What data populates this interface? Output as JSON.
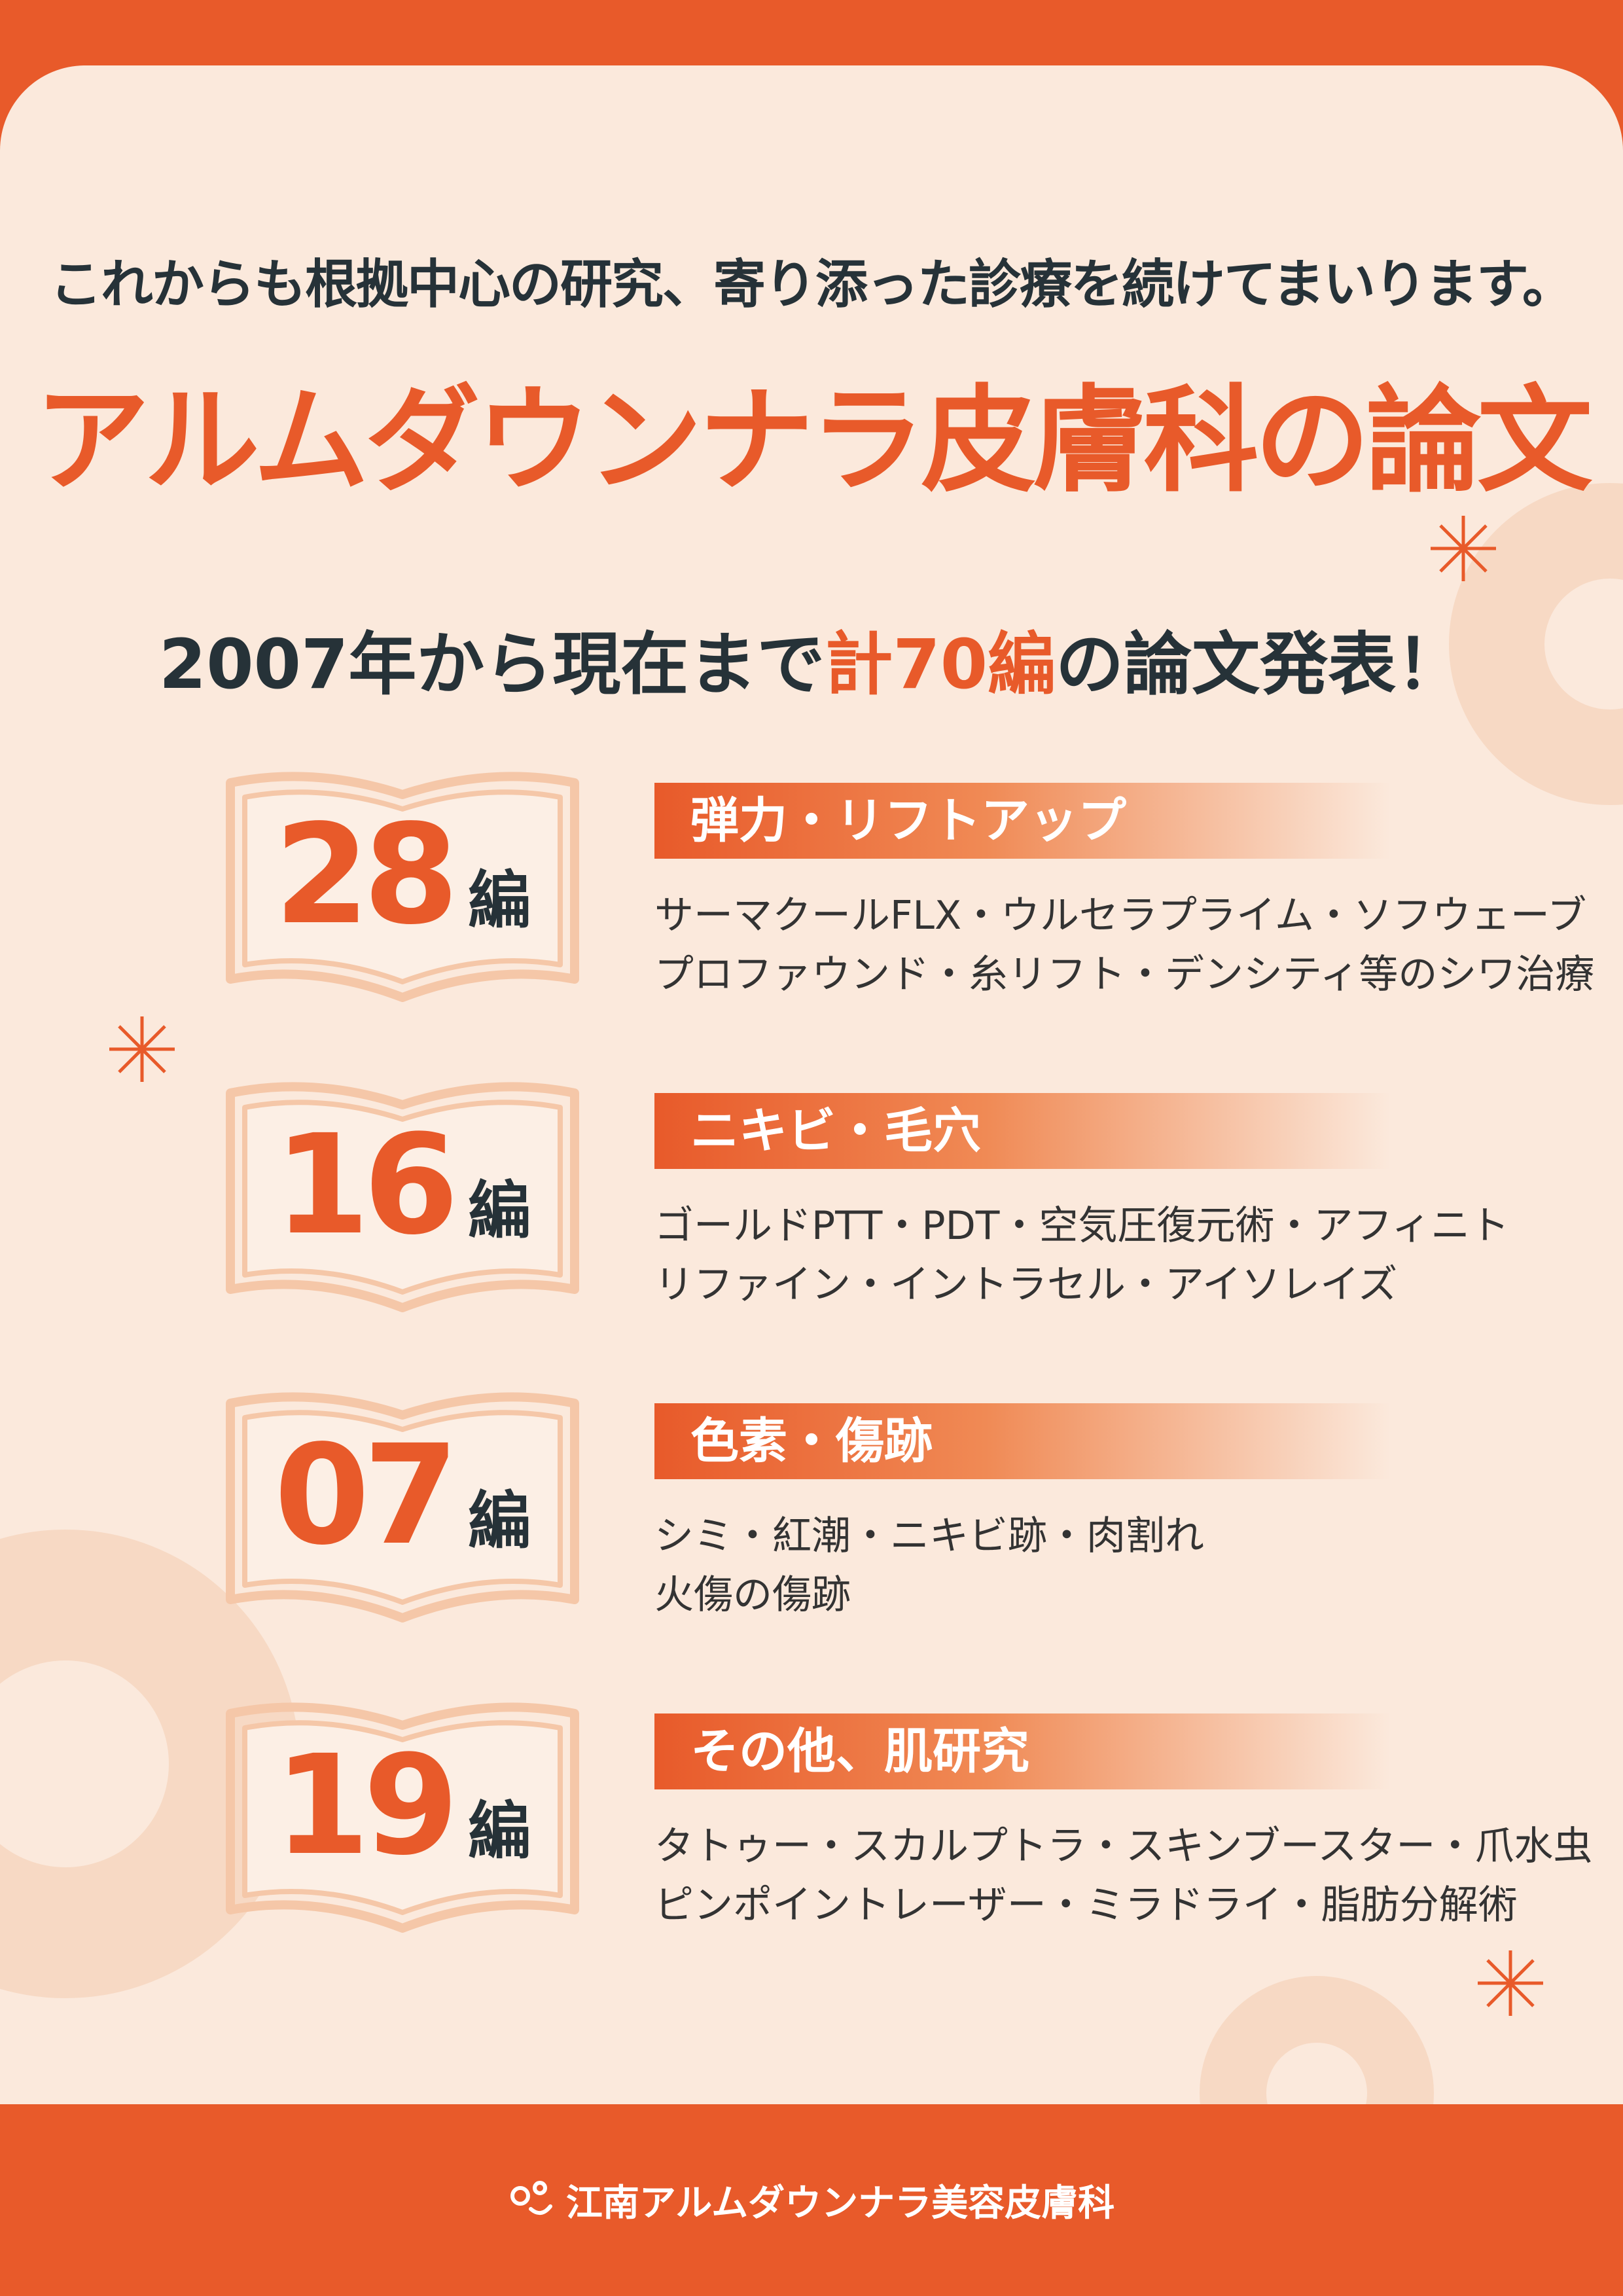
{
  "header": {
    "subtitle": "これからも根拠中心の研究、寄り添った診療を続けてまいります。",
    "title": "アルムダウンナラ皮膚科の論文"
  },
  "summary": {
    "before": "2007年から現在まで",
    "highlight": "計70編",
    "after": "の論文発表！"
  },
  "items": [
    {
      "count": "28",
      "unit": "編",
      "category": "弾力・リフトアップ",
      "lines": [
        "サーマクールFLX・ウルセラプライム・ソフウェーブ",
        "プロファウンド・糸リフト・デンシティ等のシワ治療"
      ]
    },
    {
      "count": "16",
      "unit": "編",
      "category": "ニキビ・毛穴",
      "lines": [
        "ゴールドPTT・PDT・空気圧復元術・アフィニト",
        "リファイン・イントラセル・アイソレイズ"
      ]
    },
    {
      "count": "07",
      "unit": "編",
      "category": "色素・傷跡",
      "lines": [
        "シミ・紅潮・ニキビ跡・肉割れ",
        "火傷の傷跡"
      ]
    },
    {
      "count": "19",
      "unit": "編",
      "category": "その他、肌研究",
      "lines": [
        "タトゥー・スカルプトラ・スキンブースター・爪水虫",
        "ピンポイントレーザー・ミラドライ・脂肪分解術"
      ]
    }
  ],
  "footer": {
    "clinic": "江南アルムダウンナラ美容皮膚科"
  }
}
